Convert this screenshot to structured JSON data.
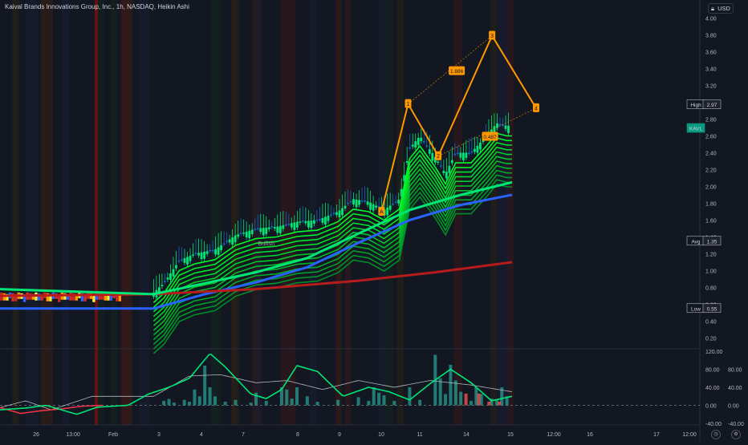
{
  "header": {
    "title": "Kaival Brands Innovations Group, Inc., 1h, NASDAQ, Heikin Ashi",
    "currency": "USD"
  },
  "price_axis": {
    "ticks": [
      "4.00",
      "3.80",
      "3.60",
      "3.40",
      "3.20",
      "3.00",
      "2.80",
      "2.60",
      "2.40",
      "2.20",
      "2.00",
      "1.80",
      "1.60",
      "1.40",
      "1.20",
      "1.00",
      "0.80",
      "0.60",
      "0.40",
      "0.20"
    ],
    "labels": [
      {
        "name": "High",
        "value": "2.97",
        "price": 2.97,
        "fill": "#131722",
        "border": "#b2b5be",
        "valueFill": "#1e222d"
      },
      {
        "name": "KAVL",
        "value": "",
        "price": 2.69,
        "fill": "#089981",
        "border": "#089981",
        "valueFill": "#089981"
      },
      {
        "name": "Avg",
        "value": "1.35",
        "price": 1.35,
        "fill": "#131722",
        "border": "#b2b5be",
        "valueFill": "#1e222d"
      },
      {
        "name": "Low",
        "value": "0.55",
        "price": 0.55,
        "fill": "#131722",
        "border": "#b2b5be",
        "valueFill": "#1e222d"
      }
    ]
  },
  "osc_axis": {
    "ticks": [
      {
        "label": "120.00",
        "v": 120
      },
      {
        "label": "80.00",
        "v": 80
      },
      {
        "label": "40.00",
        "v": 40
      },
      {
        "label": "0.00",
        "v": 0
      },
      {
        "label": "-40.00",
        "v": -40
      }
    ],
    "right_ticks": [
      {
        "label": "80.00",
        "v": 80
      },
      {
        "label": "40.00",
        "v": 40
      },
      {
        "label": "0.00",
        "v": 0
      },
      {
        "label": "-40.00",
        "v": -40
      }
    ]
  },
  "time_axis": [
    "26",
    "13:00",
    "Feb",
    "3",
    "4",
    "7",
    "8",
    "9",
    "10",
    "11",
    "14",
    "15",
    "12:00",
    "16",
    "17",
    "12:00"
  ],
  "annotations": {
    "bullish": "Bullish",
    "wave_points": [
      {
        "label": "1",
        "t": 0.797,
        "p": 2.98
      },
      {
        "label": "2",
        "t": 0.856,
        "p": 2.36
      },
      {
        "label": "3",
        "t": 0.961,
        "p": 3.79
      },
      {
        "label": "4",
        "t": 1.047,
        "p": 2.93
      }
    ],
    "extra_point": {
      "label": "A",
      "t": 0.745,
      "p": 1.7
    },
    "fib_labels": [
      {
        "label": "1.886",
        "t": 0.892,
        "p": 3.37
      },
      {
        "label": "0.487",
        "t": 0.957,
        "p": 2.59
      }
    ]
  },
  "chart_data": [
    {
      "type": "candlestick",
      "title": "Kaival Brands Innovations Group, Inc., 1h, NASDAQ, Heikin Ashi",
      "currency": "USD",
      "ylim": [
        0.1,
        4.1
      ],
      "x": [
        "26",
        "13:00",
        "Feb",
        "3",
        "4",
        "7",
        "8",
        "9",
        "10",
        "11",
        "14",
        "15",
        "12:00",
        "16",
        "17",
        "12:00"
      ],
      "close_path": [
        [
          0.0,
          0.6
        ],
        [
          0.13,
          0.6
        ],
        [
          0.18,
          0.63
        ],
        [
          0.22,
          0.66
        ],
        [
          0.26,
          0.7
        ],
        [
          0.3,
          0.74
        ],
        [
          0.32,
          0.85
        ],
        [
          0.35,
          1.12
        ],
        [
          0.38,
          1.2
        ],
        [
          0.42,
          1.25
        ],
        [
          0.46,
          1.42
        ],
        [
          0.5,
          1.5
        ],
        [
          0.54,
          1.52
        ],
        [
          0.58,
          1.58
        ],
        [
          0.62,
          1.6
        ],
        [
          0.66,
          1.7
        ],
        [
          0.69,
          1.85
        ],
        [
          0.72,
          1.82
        ],
        [
          0.75,
          1.72
        ],
        [
          0.78,
          1.85
        ],
        [
          0.8,
          2.45
        ],
        [
          0.82,
          2.6
        ],
        [
          0.85,
          2.35
        ],
        [
          0.87,
          2.15
        ],
        [
          0.89,
          2.4
        ],
        [
          0.92,
          2.4
        ],
        [
          0.95,
          2.6
        ],
        [
          0.97,
          2.75
        ],
        [
          0.99,
          2.72
        ]
      ],
      "last_price_label": "KAVL",
      "high": 2.97,
      "avg": 1.35,
      "low": 0.55,
      "series": [
        {
          "name": "",
          "color": "#2962ff",
          "points": [
            [
              0.0,
              0.55
            ],
            [
              0.3,
              0.55
            ],
            [
              0.4,
              0.72
            ],
            [
              0.5,
              0.86
            ],
            [
              0.6,
              1.04
            ],
            [
              0.7,
              1.33
            ],
            [
              0.8,
              1.6
            ],
            [
              0.9,
              1.78
            ],
            [
              1.0,
              1.9
            ]
          ]
        },
        {
          "name": "",
          "color": "#b71c1c",
          "points": [
            [
              0.0,
              0.7
            ],
            [
              0.3,
              0.72
            ],
            [
              0.5,
              0.78
            ],
            [
              0.7,
              0.88
            ],
            [
              0.85,
              0.98
            ],
            [
              1.0,
              1.1
            ]
          ]
        },
        {
          "name": "",
          "color": "#00e676",
          "points": [
            [
              0.0,
              0.78
            ],
            [
              0.3,
              0.72
            ],
            [
              0.4,
              0.85
            ],
            [
              0.5,
              0.98
            ],
            [
              0.6,
              1.15
            ],
            [
              0.7,
              1.44
            ],
            [
              0.8,
              1.72
            ],
            [
              0.9,
              1.9
            ],
            [
              1.0,
              2.05
            ]
          ]
        }
      ]
    },
    {
      "type": "bar+line",
      "ylim": [
        -40,
        120
      ],
      "oscillator_green": [
        [
          0.0,
          -10
        ],
        [
          0.05,
          -6
        ],
        [
          0.09,
          0
        ],
        [
          0.12,
          -10
        ],
        [
          0.15,
          -20
        ],
        [
          0.19,
          -4
        ],
        [
          0.25,
          0
        ],
        [
          0.29,
          25
        ],
        [
          0.33,
          40
        ],
        [
          0.37,
          60
        ],
        [
          0.41,
          115
        ],
        [
          0.44,
          85
        ],
        [
          0.49,
          25
        ],
        [
          0.52,
          15
        ],
        [
          0.55,
          35
        ],
        [
          0.58,
          88
        ],
        [
          0.62,
          75
        ],
        [
          0.67,
          20
        ],
        [
          0.72,
          40
        ],
        [
          0.76,
          30
        ],
        [
          0.8,
          12
        ],
        [
          0.84,
          48
        ],
        [
          0.88,
          80
        ],
        [
          0.92,
          50
        ],
        [
          0.96,
          10
        ],
        [
          1.0,
          20
        ]
      ],
      "oscillator_gray": [
        [
          0.0,
          -5
        ],
        [
          0.05,
          10
        ],
        [
          0.1,
          -10
        ],
        [
          0.18,
          20
        ],
        [
          0.3,
          20
        ],
        [
          0.37,
          65
        ],
        [
          0.43,
          68
        ],
        [
          0.5,
          50
        ],
        [
          0.56,
          55
        ],
        [
          0.63,
          35
        ],
        [
          0.7,
          55
        ],
        [
          0.77,
          40
        ],
        [
          0.84,
          55
        ],
        [
          0.92,
          45
        ],
        [
          1.0,
          30
        ]
      ],
      "oscillator_red": [
        [
          0.0,
          -5
        ],
        [
          0.04,
          -18
        ],
        [
          0.08,
          -12
        ],
        [
          0.12,
          -8
        ],
        [
          0.16,
          -2
        ],
        [
          0.2,
          0
        ]
      ],
      "volume": [
        {
          "t": 0.32,
          "v": 10
        },
        {
          "t": 0.33,
          "v": 14
        },
        {
          "t": 0.34,
          "v": 6
        },
        {
          "t": 0.36,
          "v": 12
        },
        {
          "t": 0.37,
          "v": 8
        },
        {
          "t": 0.38,
          "v": 35
        },
        {
          "t": 0.39,
          "v": 20
        },
        {
          "t": 0.4,
          "v": 88
        },
        {
          "t": 0.41,
          "v": 40
        },
        {
          "t": 0.42,
          "v": 20
        },
        {
          "t": 0.44,
          "v": 8
        },
        {
          "t": 0.46,
          "v": 12
        },
        {
          "t": 0.49,
          "v": 6
        },
        {
          "t": 0.5,
          "v": 28
        },
        {
          "t": 0.52,
          "v": 10
        },
        {
          "t": 0.55,
          "v": 40
        },
        {
          "t": 0.56,
          "v": 35
        },
        {
          "t": 0.57,
          "v": 15
        },
        {
          "t": 0.58,
          "v": 40
        },
        {
          "t": 0.6,
          "v": 20
        },
        {
          "t": 0.62,
          "v": 8
        },
        {
          "t": 0.66,
          "v": 12
        },
        {
          "t": 0.7,
          "v": 18
        },
        {
          "t": 0.72,
          "v": 10
        },
        {
          "t": 0.73,
          "v": 40
        },
        {
          "t": 0.74,
          "v": 28
        },
        {
          "t": 0.75,
          "v": 22
        },
        {
          "t": 0.77,
          "v": 10
        },
        {
          "t": 0.8,
          "v": 40
        },
        {
          "t": 0.82,
          "v": 12
        },
        {
          "t": 0.85,
          "v": 112
        },
        {
          "t": 0.86,
          "v": 60
        },
        {
          "t": 0.87,
          "v": 25
        },
        {
          "t": 0.88,
          "v": 90
        },
        {
          "t": 0.89,
          "v": 55
        },
        {
          "t": 0.9,
          "v": 30
        },
        {
          "t": 0.92,
          "v": 10
        },
        {
          "t": 0.93,
          "v": 40
        },
        {
          "t": 0.94,
          "v": 25
        },
        {
          "t": 0.96,
          "v": 15
        },
        {
          "t": 0.97,
          "v": 12
        },
        {
          "t": 0.98,
          "v": 40
        },
        {
          "t": 0.99,
          "v": 20
        }
      ],
      "volume_red": [
        {
          "t": 0.91,
          "v": 26
        },
        {
          "t": 0.935,
          "v": 26
        },
        {
          "t": 0.955,
          "v": 8
        },
        {
          "t": 0.975,
          "v": 8
        }
      ]
    }
  ]
}
